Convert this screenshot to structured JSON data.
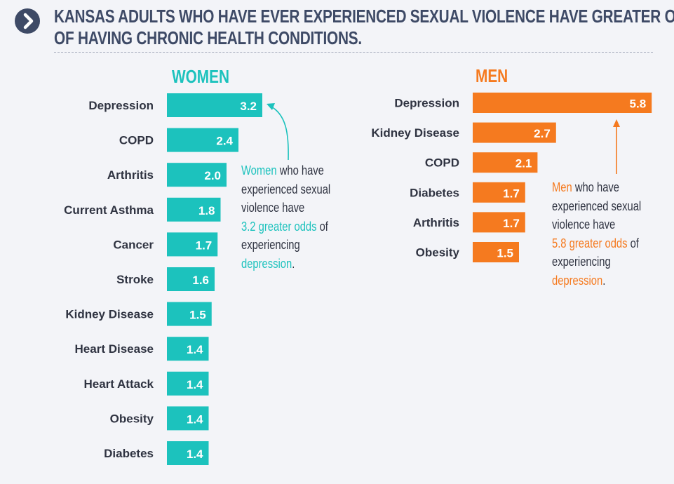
{
  "header": {
    "title_line1": "KANSAS ADULTS WHO HAVE EVER EXPERIENCED SEXUAL VIOLENCE HAVE GREATER ODDS",
    "title_line2": "OF HAVING CHRONIC HEALTH CONDITIONS.",
    "icon": "chevron-right-icon"
  },
  "colors": {
    "women": "#1cc2bd",
    "men": "#f57a1f",
    "title": "#3e4a66"
  },
  "chart_data": [
    {
      "type": "bar",
      "orientation": "horizontal",
      "title": "WOMEN",
      "categories": [
        "Depression",
        "COPD",
        "Arthritis",
        "Current Asthma",
        "Cancer",
        "Stroke",
        "Kidney Disease",
        "Heart Disease",
        "Heart Attack",
        "Obesity",
        "Diabetes"
      ],
      "values": [
        3.2,
        2.4,
        2.0,
        1.8,
        1.7,
        1.6,
        1.5,
        1.4,
        1.4,
        1.4,
        1.4
      ],
      "value_labels": [
        "3.2",
        "2.4",
        "2.0",
        "1.8",
        "1.7",
        "1.6",
        "1.5",
        "1.4",
        "1.4",
        "1.4",
        "1.4"
      ]
    },
    {
      "type": "bar",
      "orientation": "horizontal",
      "title": "MEN",
      "categories": [
        "Depression",
        "Kidney Disease",
        "COPD",
        "Diabetes",
        "Arthritis",
        "Obesity"
      ],
      "values": [
        5.8,
        2.7,
        2.1,
        1.7,
        1.7,
        1.5
      ],
      "value_labels": [
        "5.8",
        "2.7",
        "2.1",
        "1.7",
        "1.7",
        "1.5"
      ]
    }
  ],
  "callouts": {
    "women": {
      "highlight1": "Women",
      "text1": " who have",
      "line2": "experienced sexual",
      "line3": "violence have",
      "highlight2": "3.2 greater odds",
      "text2": " of",
      "line5": "experiencing",
      "highlight3": "depression",
      "text3": "."
    },
    "men": {
      "highlight1": "Men",
      "text1": " who have",
      "line2": "experienced sexual",
      "line3": "violence have",
      "highlight2": "5.8 greater odds",
      "text2": " of",
      "line5": "experiencing",
      "highlight3": "depression",
      "text3": "."
    }
  }
}
